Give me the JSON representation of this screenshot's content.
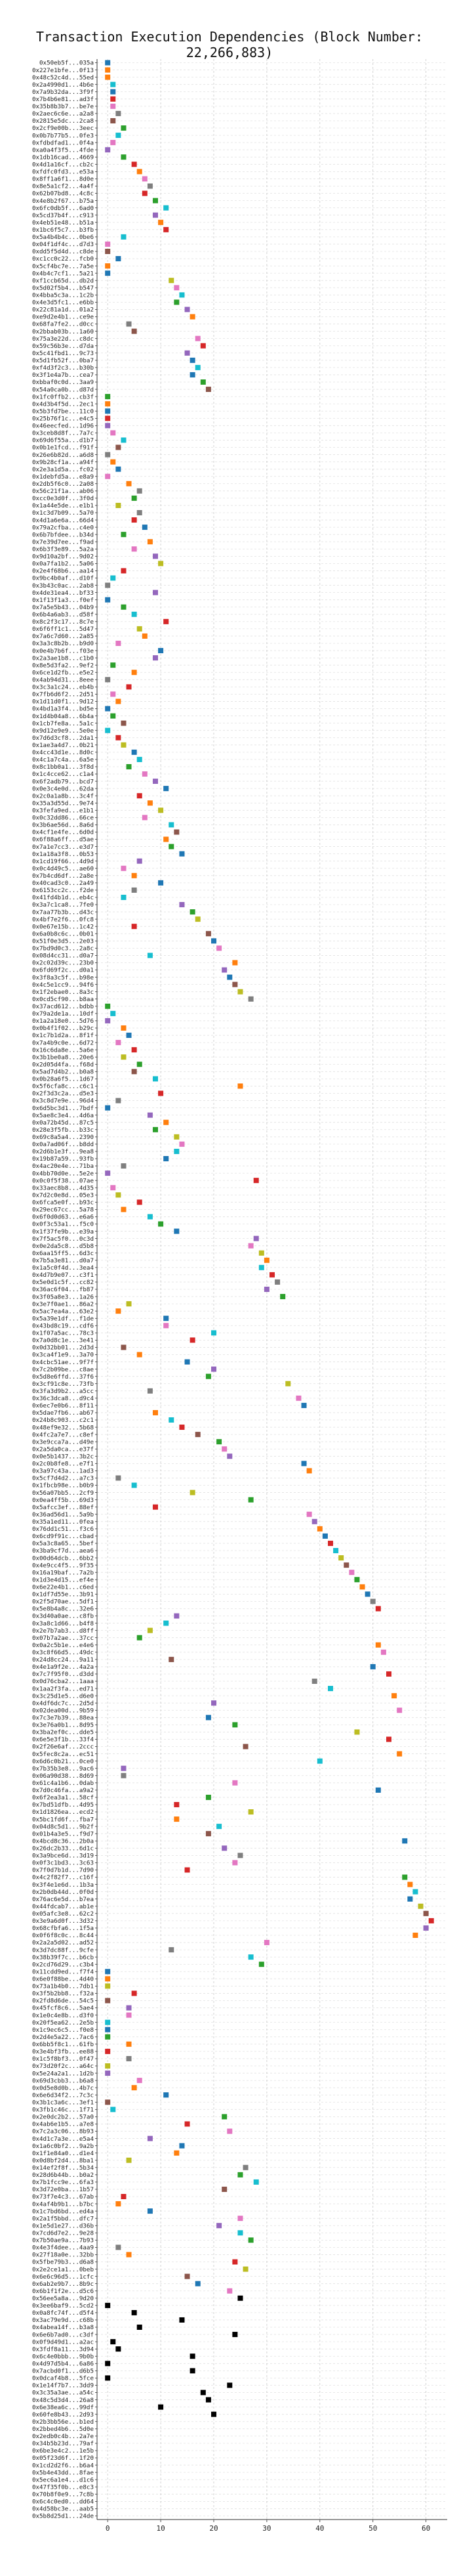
{
  "chart_data": {
    "type": "scatter",
    "title": "Transaction Execution Dependencies (Block Number: 22,266,883)",
    "xlabel": "",
    "ylabel": "",
    "xlim": [
      -2,
      64
    ],
    "xticks": [
      0,
      10,
      20,
      30,
      40,
      50,
      60
    ],
    "grid": true,
    "legend": "none",
    "palette": [
      "#1f77b4",
      "#ff7f0e",
      "#2ca02c",
      "#d62728",
      "#9467bd",
      "#8c564b",
      "#e377c2",
      "#7f7f7f",
      "#bcbd22",
      "#17becf"
    ],
    "categories": [
      "0x50eb5f...035a",
      "0x227e1bfe...0f13",
      "0x48c52c4d...55ed",
      "0x2a4990d1...4b6e",
      "0x7a9b32da...3f9f",
      "0x7b4b6e81...ad3f",
      "0x35b8b3b7...be7e",
      "0x2aec6c6e...a2a8",
      "0x2815e5dc...2ca8",
      "0x2cf9e00b...3eec",
      "0x0b7b77b5...0fe3",
      "0xfdbdfad1...0f4a",
      "0xa0a4f3f5...4fde",
      "0x1db16cad...4669",
      "0x4d1a16cf...cb2c",
      "0xfdfc0fd3...e53a",
      "0x8ff1a6f1...8d0e",
      "0x8e5a1cf2...4a4f",
      "0x62b07bd8...4c8c",
      "0x4e8b2f67...b75a",
      "0x6fc0db5f...6ad0",
      "0x5cd37b4f...c913",
      "0x4eb51e48...b51a",
      "0x1bc6f5c7...b3fb",
      "0x5a4b4b4c...0be6",
      "0x04f1df4c...d7d3",
      "0xdd5f5d4d...c8de",
      "0xc1cc0c22...fcb0",
      "0x5cf4bc7e...7a5e",
      "0x4b4c7cf1...5a21",
      "0xf1ccb65d...db2d",
      "0x5d02f5b4...b547",
      "0x4bba5c3a...1c2b",
      "0x4e3d5fc1...e6bb",
      "0x22c81a1d...01a2",
      "0xe9d2e4b1...ce9e",
      "0x68fa7fe2...d0cc",
      "0x2bbab03b...1a60",
      "0x75a3e22d...c8dc",
      "0x59c56b3e...d7da",
      "0x5c41fbd1...9c73",
      "0x5d1fb52f...0ba7",
      "0xf4d3f2c3...b30b",
      "0x3f1e4a7b...cea7",
      "0xbbaf0c0d...3aa9",
      "0x54a0ca0b...d87d",
      "0x1fc0ffb2...cb3f",
      "0x4d3b4f5d...2ec1",
      "0x5b3fd7be...11c0",
      "0x25b76f1c...e4c5",
      "0x46eecfed...1d96",
      "0x3ceb8d8f...7a7c",
      "0x69d6f55a...d1b7",
      "0x0b1e1fcd...f91f",
      "0x26e6b82d...a6d8",
      "0x9b28cf1a...a94f",
      "0x2e3a1d5a...fc02",
      "0x1debfd5a...e8a9",
      "0x2db5f6c0...2a08",
      "0x56c21f1a...ab06",
      "0xcc0e3d0f...3f0d",
      "0x1a44e5de...e1b1",
      "0x1c3d7b09...5a70",
      "0x4d1a6e6a...66d4",
      "0x79a2cfba...c4e0",
      "0x6b7bfdee...b34d",
      "0x7e39d7ee...f9ad",
      "0x6b3f3e89...5a2a",
      "0x9d10a2bf...9d02",
      "0x0a7fa1b2...5a06",
      "0x2e4f68b6...aa14",
      "0x9bc4b0af...d10f",
      "0x3b43c0ac...2ab8",
      "0x4de31ea4...bf33",
      "0x1f13f1a3...f0ef",
      "0x7a5e5b43...04b9",
      "0x6b4a6ab3...d58f",
      "0x8c2f3c17...8c7e",
      "0x6f6ff1c1...5d47",
      "0x7a6c7d60...2a85",
      "0x3a3c8b2b...b9d0",
      "0x0e4b7b6f...f03e",
      "0x2a3ae1b8...c1b0",
      "0x8e5d3fa2...9ef2",
      "0x6ce1d2fb...e5e2",
      "0x4ab94d31...8eee",
      "0x3c3a1c24...eb4b",
      "0x7fb6d6f2...2d51",
      "0x1d11d0f1...9d12",
      "0x4bd1a3f4...bd5e",
      "0x1d4b04a8...6b4a",
      "0x1cb7fe8a...5a1c",
      "0x9d12e9e9...5e0e",
      "0x7d6d3cf8...2da1",
      "0x1ae3a4d7...0b21",
      "0x4cc43d1e...8d0c",
      "0x4c1a7c4a...6a5e",
      "0x8c1bb0a1...3f8d",
      "0x1c4cce62...c1a4",
      "0x6f2adb79...bcd7",
      "0x0e3c4e0d...62da",
      "0x2c0a1a8b...3c4f",
      "0x35a3d55d...9e74",
      "0x3fefa9ed...e1b1",
      "0x0c32dd86...66ce",
      "0x3b6ae56d...8a6d",
      "0x4cf1e4fe...6d0d",
      "0x6f88a6ff...d5ae",
      "0x7a1e7cc3...e3d7",
      "0x1a18a3f8...0b53",
      "0x1cd19f66...4d9d",
      "0x0c4d49c5...ae60",
      "0x7b4cd6df...2a8e",
      "0x40cad3c0...2a49",
      "0x6153cc2c...f2de",
      "0x41fd4b1d...eb4c",
      "0x3a7c1ca8...7fe0",
      "0x7aa77b3b...d43c",
      "0x4bf7e2f6...0fc8",
      "0x0e67e15b...1c42",
      "0x6a0b8c6c...0b01",
      "0x51f0e3d5...2e03",
      "0x7bd9d0c3...2a8c",
      "0x08d4cc31...d0a7",
      "0x2c02d39c...23b0",
      "0x6fd69f2c...d0a1",
      "0x3f8a3c5f...b98e",
      "0x4c5e1cc9...94f6",
      "0x1f2ebae0...8a3c",
      "0x0cd5cf90...b8aa",
      "0x37acd612...bdbb",
      "0x79a2de1a...10df",
      "0x1a2a18e0...5d76",
      "0x0b4f1f02...b29c",
      "0x1c7b1d2a...8f1f",
      "0x7a4b9c0e...6d72",
      "0x16c6da8e...5a6e",
      "0x3b1be0a8...20e6",
      "0x2d05d4fa...f68d",
      "0x5ad7d4b2...b0a8",
      "0x0b28a6f5...1d67",
      "0x5f6cfa8c...c6c1",
      "0x2f3d3c2a...d5e3",
      "0x3c8d7e9e...96d4",
      "0x6d5bc3d1...7bdf",
      "0x5ae8c3e4...4d6a",
      "0x0a72b45d...87c5",
      "0x28e3f5fb...b33c",
      "0x69c8a5a4...2390",
      "0x0a7ad06f...b8dd",
      "0x2d6b1e3f...9ea8",
      "0x19b87a59...93fb",
      "0x4ac20e4e...71ba",
      "0x4bb70d0e...5e2e",
      "0x0c0f5f38...07ae",
      "0x33aec8b8...4d35",
      "0x7d2c0e8d...05e3",
      "0x6fca5e0f...b93c",
      "0x29ec67cc...5a78",
      "0x6f0d0d63...e6a6",
      "0x0f3c53a1...f5c0",
      "0x1f37fe9b...e39a",
      "0x7f5ac5f0...0c3d",
      "0x0e2da5c8...d5b8",
      "0x6aa15ff5...6d3c",
      "0x7b5a3e81...d0a7",
      "0x1a5c0f4d...3ea4",
      "0x4d7b9e07...c3f1",
      "0x5e0d1c5f...cc82",
      "0x36ac6f04...fb87",
      "0x3f05a8e3...1a26",
      "0x3e7f0ae1...86a2",
      "0x5ac7ea4a...63e2",
      "0x5a39e1df...f1de",
      "0x43bd8c19...cdf6",
      "0x1f07a5ac...78c3",
      "0x7a0d8c1e...3e41",
      "0x0d32bb01...2d3d",
      "0x3ca4f1e9...3a70",
      "0x4cbc51ae...9f7f",
      "0x7c2b09be...c8ae",
      "0x5d8e6ffd...37f6",
      "0x3cf91c8e...73fb",
      "0x3fa3d9b2...a5cc",
      "0x36c3dca8...d9c4",
      "0x6ec7e0b6...8f11",
      "0x5dae7fb6...ab67",
      "0x24b8c903...c2c1",
      "0x48ef9e32...5b68",
      "0x4fc2a7e7...c8ef",
      "0x3e9cca7a...d49e",
      "0x2a5da0ca...e37f",
      "0x0e5b1437...3b2c",
      "0x2c0b8fe8...e7f1",
      "0x3a97c43a...1ad3",
      "0x5cf7d4d2...a7c3",
      "0x1fbcb98e...b0b9",
      "0x56a07bb5...2cf9",
      "0x0ea4ff5b...69d3",
      "0x5afcc3ef...88ef",
      "0x36ad56d1...5a9b",
      "0x35a1ed11...0fea",
      "0x76dd1c51...f3c6",
      "0x6cd9f91c...cbad",
      "0x5a3c8a65...5bef",
      "0x3ba9cf7d...aea6",
      "0x00d64dcb...6bb2",
      "0x4e9cc4f5...9f35",
      "0x16a19baf...7a2b",
      "0x1d3e4d15...ef4e",
      "0x6e22e4b1...c6ed",
      "0x1df7d55e...3b91",
      "0x2f5d70ae...5df1",
      "0x5e8b4a8c...32e6",
      "0x3d40a0ae...c8fb",
      "0x3a8c1d66...b4f8",
      "0x2e7b7ab3...d8ff",
      "0x07b7a2ae...37cc",
      "0x0a2c5b1e...e4e6",
      "0x3c8f66d5...49dc",
      "0x24d8cc24...9a11",
      "0x4e1a9f2e...4a2a",
      "0x7c7f95f0...d3dd",
      "0x0d76cba2...1aaa",
      "0x1aa2f3fa...ed71",
      "0x3c25d1e5...d6e0",
      "0x4df6dc7c...2d5d",
      "0x02dea00d...9b59",
      "0x7c3e7b39...88ea",
      "0x3e76a0b1...8d95",
      "0x3ba2ef0c...dde5",
      "0x6e5e3f1b...33f4",
      "0x2f26e6af...2ccc",
      "0x5fec8c2a...ec51",
      "0x6d6c0b21...0ce0",
      "0x7b35b3e8...9ac6",
      "0x06a90d38...8d69",
      "0x61c4a1b6...0dab",
      "0x7d0c46fa...a9a2",
      "0x6f2ea3a1...58cf",
      "0x7bd51dfb...4d95",
      "0x1d1826ea...ecd2",
      "0x5bc1fd6f...fba7",
      "0x04d8c5d1...9b2f",
      "0x01b4a3e5...f9d7",
      "0x4bcd8c36...2b0a",
      "0x26dc2b33...6d1c",
      "0x3a9bce6d...3d19",
      "0x0f3c1bd3...3c63",
      "0x7f0d7b1d...7d90",
      "0x4c2f82f7...c16f",
      "0x3f4e1e6d...1b3a",
      "0x2b0db44d...0f0d",
      "0x76ac6e5d...b7ea",
      "0x44fdcab7...ab1e",
      "0x05afc3e8...62c2",
      "0x3e9a6d0f...3d32",
      "0x68cfbfa6...1f5a",
      "0x0f6f8c0c...8c44",
      "0x2a2a5d02...ad52",
      "0x3d7dc88f...9cfe",
      "0x38b39f7c...b6cb",
      "0x2cd76d29...c3b4",
      "0x11cdd9ed...f7f4",
      "0x6e0f88be...4d40",
      "0x73a1b4b0...7db1",
      "0x3f5b2bb8...f32a",
      "0x2fd8d6de...54c5",
      "0x45fcf8c6...5ae4",
      "0x1e0c4e8b...d3f0",
      "0x20f5ea62...2e5b",
      "0x1c9ec6c5...f0e8",
      "0x2d4e5a22...7ac6",
      "0x6bb5f8c1...61fb",
      "0x3e4bf3fb...ee88",
      "0x1c5f8bf3...0f47",
      "0x73d20f2c...a64c",
      "0x5e24a2a1...1d2b",
      "0x69d3cbb3...b6a8",
      "0x0d5e8d0b...4b7c",
      "0x6e6d34f2...7c3c",
      "0x3b1c3a6c...3ef1",
      "0x3fb1c46c...1f71",
      "0x2e0dc2b2...57a0",
      "0x4ab6e1b5...a7e8",
      "0x7c2a3c06...8b93",
      "0x4d1c7a3e...e5a4",
      "0x1a6c0bf2...9a2b",
      "0x1f1e84a0...d1e4",
      "0x0d8bf2d4...8ba1",
      "0x14ef2f8f...5b34",
      "0x28d6b44b...b0a2",
      "0x7b1fcc9e...6fa3",
      "0x3d72e0ba...1b57",
      "0x73f7e4c3...67ab",
      "0x4af4b9b1...b7bc",
      "0x1c7bd6bd...ed4a",
      "0x2a1f5bbd...dfc7",
      "0x1e5d1e27...d36b",
      "0x7cd6d7e2...9e28",
      "0x7b50ae9a...7b93",
      "0x4e3f4dee...4aa9",
      "0x27f18a0e...32bb",
      "0x5fbe79b3...d6a8",
      "0x2e2ce1a1...0beb",
      "0x6e6c96d5...1cfc",
      "0x6ab2e9b7...8b9c",
      "0x6b1f1f2e...d5c6",
      "0x56ee5a8a...9d20",
      "0x3ee6baf9...5cd2",
      "0x0a8fc74f...d5f4",
      "0x3ac79e9d...c68b",
      "0x4abea14f...b3a8",
      "0x6e6b7ad0...c3df",
      "0x0f9d49d1...a2ac",
      "0x3fdf8a11...3d94",
      "0x6c4e0bbb...9b0b",
      "0x4d97d5b4...6a86",
      "0x7acbd0f1...d6b5",
      "0x0dcaf4b8...5fce",
      "0x1e14f7b7...3dd9",
      "0x3c35a3ae...a54c",
      "0x48c5d3d4...26a8",
      "0x6e38ea6c...99df",
      "0x60fe8b43...2d93",
      "0x2b3bb56e...b1ed",
      "0x2bbed4b6...5d0e",
      "0x2edb0c4b...2a7e",
      "0x34b5b23d...79af",
      "0x6be3e4c2...1e5b",
      "0x05f23d6f...1f20",
      "0x1cd2d2f6...b6a4",
      "0x5b4e43dd...8fae",
      "0x5ec6a1e4...d1c6",
      "0x47f35f0b...e8c3",
      "0x70b8f0e9...7c8b",
      "0x6c4c0ed0...dd64",
      "0x4d58bc3e...aab5",
      "0x5b8d25d1...24de"
    ],
    "x": [
      0,
      0,
      0,
      1,
      1,
      1,
      1,
      2,
      1,
      3,
      2,
      1,
      0,
      3,
      5,
      6,
      7,
      8,
      7,
      9,
      11,
      9,
      10,
      11,
      3,
      0,
      0,
      2,
      0,
      0,
      12,
      13,
      14,
      13,
      15,
      16,
      4,
      5,
      17,
      18,
      15,
      16,
      17,
      16,
      18,
      19,
      0,
      0,
      0,
      0,
      0,
      1,
      3,
      2,
      0,
      1,
      2,
      0,
      4,
      6,
      5,
      2,
      6,
      5,
      7,
      3,
      8,
      5,
      9,
      10,
      3,
      1,
      0,
      9,
      0,
      3,
      5,
      11,
      6,
      7,
      2,
      10,
      9,
      1,
      5,
      0,
      4,
      1,
      2,
      0,
      1,
      3,
      0,
      2,
      3,
      5,
      6,
      4,
      7,
      9,
      11,
      6,
      8,
      10,
      7,
      12,
      13,
      11,
      12,
      14,
      6,
      3,
      5,
      10,
      5,
      3,
      14,
      16,
      17,
      5,
      19,
      20,
      21,
      8,
      24,
      22,
      23,
      24,
      25,
      27,
      0,
      1,
      0,
      3,
      4,
      2,
      5,
      3,
      6,
      5,
      9,
      25,
      10,
      2,
      0,
      8,
      11,
      9,
      13,
      14,
      13,
      11,
      3,
      0,
      28,
      1,
      2,
      6,
      3,
      8,
      10,
      13,
      28,
      27,
      29,
      30,
      29,
      31,
      32,
      30,
      33,
      4,
      2,
      11,
      11,
      20,
      16,
      3,
      6,
      15,
      20,
      19,
      34,
      8,
      36,
      37,
      9,
      12,
      14,
      17,
      21,
      22,
      23,
      37,
      38,
      2,
      5,
      16,
      27,
      9,
      38,
      39,
      40,
      41,
      42,
      43,
      44,
      45,
      46,
      47,
      48,
      49,
      50,
      51,
      13,
      11,
      8,
      6,
      51,
      52,
      12,
      50,
      53,
      39,
      42,
      54,
      20,
      55,
      19,
      24,
      47,
      53,
      26,
      55,
      40,
      3,
      3,
      24,
      51,
      19,
      13,
      27,
      13,
      21,
      19,
      56,
      22,
      25,
      24,
      15,
      56,
      57,
      58,
      57,
      59,
      60,
      61,
      60,
      58,
      30,
      12,
      27,
      29,
      0,
      0,
      0,
      5,
      0,
      4,
      4,
      0,
      0,
      0,
      4,
      0,
      4,
      0,
      0,
      6,
      5,
      11,
      0,
      1,
      22,
      15,
      23,
      8,
      14,
      13,
      4,
      26,
      25,
      28,
      22,
      3,
      2,
      8,
      25,
      21,
      25,
      27,
      2,
      4,
      24,
      26,
      15,
      17,
      23,
      25,
      0,
      5,
      14,
      6,
      24,
      1,
      2,
      16,
      0,
      16,
      0,
      23,
      18,
      19,
      10,
      20
    ],
    "series_colors": [
      0,
      1,
      1,
      9,
      0,
      3,
      6,
      7,
      5,
      2,
      9,
      6,
      4,
      2,
      3,
      1,
      6,
      7,
      3,
      2,
      9,
      4,
      1,
      3,
      9,
      6,
      5,
      0,
      1,
      0,
      8,
      6,
      9,
      2,
      4,
      1,
      7,
      5,
      6,
      3,
      4,
      0,
      9,
      0,
      2,
      5,
      2,
      1,
      0,
      3,
      4,
      6,
      9,
      5,
      7,
      1,
      0,
      6,
      1,
      7,
      2,
      8,
      7,
      3,
      0,
      2,
      1,
      6,
      4,
      8,
      3,
      9,
      7,
      4,
      0,
      2,
      9,
      3,
      8,
      1,
      6,
      0,
      4,
      2,
      1,
      7,
      3,
      6,
      1,
      0,
      2,
      5,
      9,
      3,
      8,
      0,
      9,
      2,
      6,
      4,
      0,
      3,
      1,
      8,
      6,
      9,
      5,
      1,
      2,
      0,
      4,
      6,
      1,
      0,
      7,
      9,
      4,
      2,
      8,
      3,
      5,
      0,
      6,
      9,
      1,
      4,
      0,
      5,
      8,
      7,
      2,
      9,
      4,
      1,
      0,
      6,
      3,
      8,
      2,
      5,
      9,
      1,
      3,
      7,
      0,
      4,
      1,
      2,
      8,
      6,
      9,
      0,
      7,
      4,
      3,
      6,
      8,
      3,
      1,
      9,
      2,
      0,
      4,
      6,
      8,
      1,
      9,
      3,
      7,
      4,
      2,
      8,
      1,
      0,
      6,
      9,
      3,
      5,
      1,
      0,
      4,
      2,
      8,
      7,
      6,
      0,
      1,
      9,
      3,
      5,
      2,
      6,
      4,
      0,
      1,
      7,
      9,
      8,
      2,
      3,
      6,
      4,
      1,
      0,
      3,
      9,
      8,
      5,
      6,
      2,
      1,
      0,
      7,
      3,
      4,
      9,
      8,
      2,
      1,
      6,
      5,
      0,
      3,
      7,
      9,
      1,
      4,
      6,
      0,
      2,
      8,
      3,
      5,
      1,
      9,
      4,
      7,
      6,
      0,
      2,
      3,
      8,
      1,
      9,
      5,
      0,
      4,
      7,
      6,
      3,
      2,
      1,
      9,
      0,
      8,
      5,
      3,
      4,
      1,
      6,
      7,
      9,
      2,
      0,
      1,
      8,
      3,
      5,
      4,
      6,
      9,
      0,
      2,
      1,
      3,
      7,
      8,
      4,
      6,
      1,
      0,
      5,
      9,
      2,
      3,
      6,
      4,
      0,
      1,
      8,
      7,
      2,
      9,
      5,
      3,
      1,
      0,
      6,
      4,
      9,
      2,
      7,
      1,
      3,
      8,
      5,
      0,
      6
    ]
  }
}
